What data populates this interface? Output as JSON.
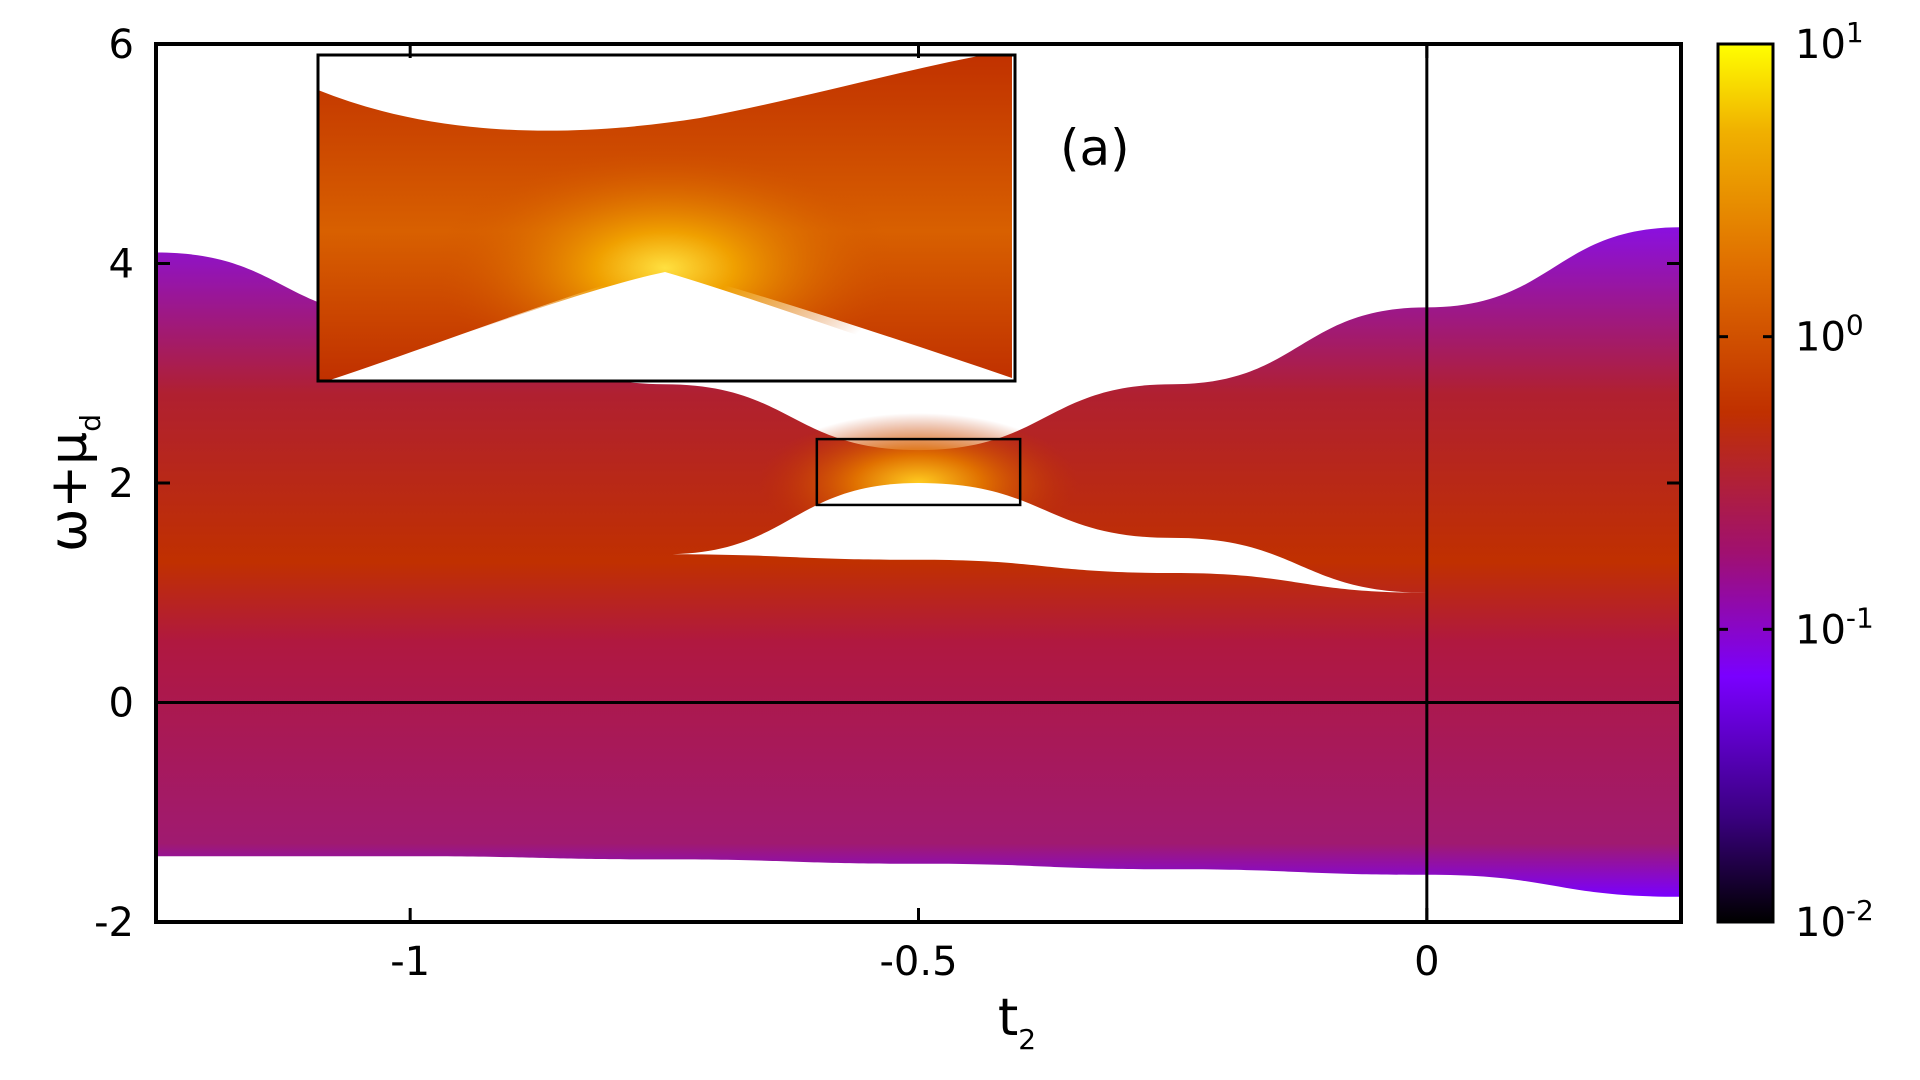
{
  "chart_data": {
    "type": "heatmap",
    "panel_label": "(a)",
    "xlabel": {
      "base": "t",
      "sub": "2"
    },
    "ylabel": {
      "base": "ω+μ",
      "sub": "d"
    },
    "xlim": [
      -1.25,
      0.25
    ],
    "ylim": [
      -2,
      6
    ],
    "x_ticks": [
      {
        "value": -1,
        "label": "-1"
      },
      {
        "value": -0.5,
        "label": "-0.5"
      },
      {
        "value": 0,
        "label": "0"
      }
    ],
    "y_ticks": [
      {
        "value": -2,
        "label": "-2"
      },
      {
        "value": 0,
        "label": "0"
      },
      {
        "value": 2,
        "label": "2"
      },
      {
        "value": 4,
        "label": "4"
      },
      {
        "value": 6,
        "label": "6"
      }
    ],
    "reference_lines": {
      "x": 0,
      "y": 0
    },
    "bands": [
      {
        "x": [
          -1.25,
          -1.0,
          -0.75,
          -0.5,
          -0.25,
          0.0,
          0.25
        ],
        "upper": [
          4.1,
          3.5,
          2.9,
          2.3,
          2.9,
          3.6,
          4.33
        ],
        "lower": [
          -1.4,
          -1.4,
          -1.43,
          -1.47,
          -1.52,
          -1.57,
          -1.77
        ]
      }
    ],
    "gaps": [
      {
        "x": [
          -0.75,
          -0.5,
          -0.25,
          0.0
        ],
        "upper": [
          1.35,
          2.0,
          1.5,
          1.0
        ],
        "lower": [
          1.35,
          1.3,
          1.18,
          1.0
        ]
      }
    ],
    "zoom_box": {
      "x": [
        -0.6,
        -0.4
      ],
      "y": [
        1.8,
        2.4
      ]
    },
    "colorbar": {
      "scale": "log",
      "range": [
        0.01,
        10
      ],
      "ticks": [
        {
          "base": "10",
          "exp": "1"
        },
        {
          "base": "10",
          "exp": "0"
        },
        {
          "base": "10",
          "exp": "-1"
        },
        {
          "base": "10",
          "exp": "-2"
        }
      ],
      "colors": [
        "#000000",
        "#3a0080",
        "#7a00ff",
        "#a01070",
        "#c03000",
        "#e07000",
        "#f0b000",
        "#ffff00"
      ]
    }
  }
}
